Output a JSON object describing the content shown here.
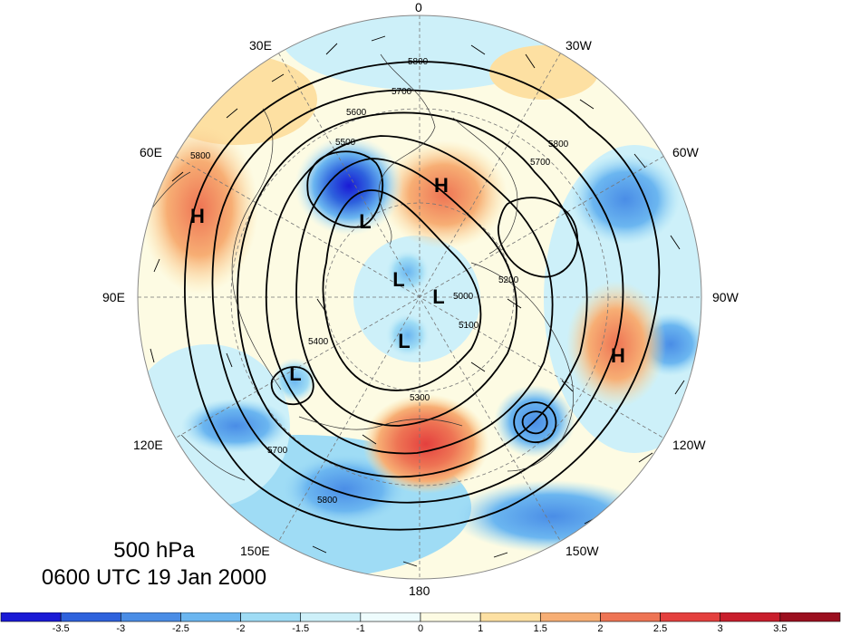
{
  "map": {
    "level": "500 hPa",
    "valid_time": "0600 UTC 19 Jan 2000",
    "longitude_labels": {
      "l0": "0",
      "l30w": "30W",
      "l60w": "60W",
      "l90w": "90W",
      "l120w": "120W",
      "l150w": "150W",
      "l180": "180",
      "l150e": "150E",
      "l120e": "120E",
      "l90e": "90E",
      "l60e": "60E",
      "l30e": "30E"
    },
    "contour_labels": [
      "5800",
      "5700",
      "5600",
      "5500",
      "5400",
      "5300",
      "5200",
      "5100",
      "5000"
    ],
    "centers": {
      "h1": "H",
      "h2": "H",
      "h3": "H",
      "l1": "L",
      "l2": "L",
      "l3": "L",
      "l4": "L",
      "l5": "L"
    }
  },
  "colorbar": {
    "ticks": [
      "-3.5",
      "-3",
      "-2.5",
      "-2",
      "-1.5",
      "-1",
      "0",
      "1",
      "1.5",
      "2",
      "2.5",
      "3",
      "3.5"
    ],
    "colors": [
      "#1a1ad6",
      "#2e62dd",
      "#4a8de6",
      "#6bb6f0",
      "#9fdcf5",
      "#cdf0f9",
      "#eefcfd",
      "#fdfbe3",
      "#fde0a2",
      "#f7ae74",
      "#ee7454",
      "#e4403e",
      "#c91e2c",
      "#9c0f1f"
    ]
  }
}
